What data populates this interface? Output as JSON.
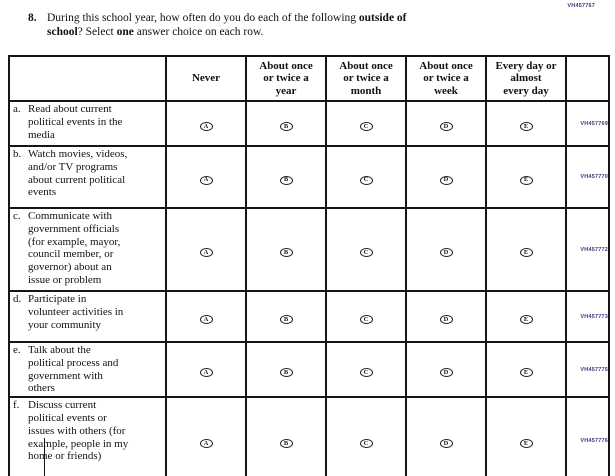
{
  "page_code": "VH457767",
  "question": {
    "number": "8.",
    "lines": [
      [
        {
          "text": "During this school year, how often do you do each of the following ",
          "bold": false
        },
        {
          "text": "outside of",
          "bold": true
        }
      ],
      [
        {
          "text": "school",
          "bold": true
        },
        {
          "text": "? Select ",
          "bold": false
        },
        {
          "text": "one",
          "bold": true
        },
        {
          "text": " answer choice on each row.",
          "bold": false
        }
      ]
    ]
  },
  "table": {
    "column_headers": [
      "Never",
      "About once\nor twice a\nyear",
      "About once\nor twice a\nmonth",
      "About once\nor twice a\nweek",
      "Every day or\nalmost\nevery day"
    ],
    "bubble_letters": [
      "A",
      "B",
      "C",
      "D",
      "E"
    ],
    "rows": [
      {
        "letter": "a.",
        "text": "Read about current\npolitical events in the\nmedia",
        "code": "VH457769"
      },
      {
        "letter": "b.",
        "text": "Watch movies, videos,\nand/or TV programs\nabout current political\nevents",
        "code": "VH457770"
      },
      {
        "letter": "c.",
        "text": "Communicate with\ngovernment officials\n(for example, mayor,\ncouncil member, or\ngovernor) about an\nissue or problem",
        "code": "VH457772"
      },
      {
        "letter": "d.",
        "text": "Participate in\nvolunteer activities in\nyour community",
        "code": "VH457773"
      },
      {
        "letter": "e.",
        "text": "Talk about the\npolitical process and\ngovernment with\nothers",
        "code": "VH457775"
      },
      {
        "letter": "f.",
        "text": "Discuss current\npolitical events or\nissues with others (for\nexample, people in my\nhome or friends)",
        "code": "VH457776"
      }
    ]
  },
  "colors": {
    "code_text": "#3a3a7d",
    "ink": "#111111"
  }
}
